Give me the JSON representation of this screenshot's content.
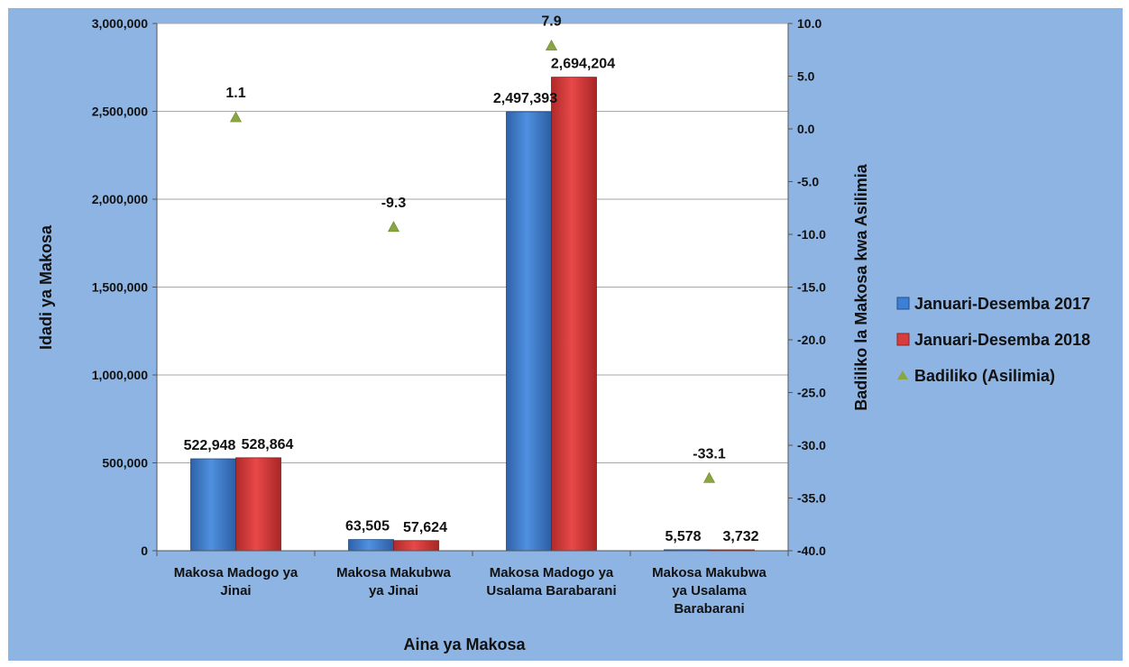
{
  "chart_data": {
    "type": "bar",
    "categories": [
      [
        "Makosa Madogo ya",
        "Jinai"
      ],
      [
        "Makosa Makubwa",
        "ya Jinai"
      ],
      [
        "Makosa Madogo ya",
        "Usalama Barabarani"
      ],
      [
        "Makosa Makubwa",
        "ya Usalama",
        "Barabarani"
      ]
    ],
    "series": [
      {
        "name": "Januari-Desemba 2017",
        "values": [
          522948,
          63505,
          2497393,
          5578
        ],
        "labels": [
          "522,948",
          "63,505",
          "2,497,393",
          "5,578"
        ],
        "color": "#3d7fd4"
      },
      {
        "name": "Januari-Desemba 2018",
        "values": [
          528864,
          57624,
          2694204,
          3732
        ],
        "labels": [
          "528,864",
          "57,624",
          "2,694,204",
          "3,732"
        ],
        "color": "#d93c3c"
      }
    ],
    "change_series": {
      "name": "Badiliko (Asilimia)",
      "values": [
        1.1,
        -9.3,
        7.9,
        -33.1
      ],
      "labels": [
        "1.1",
        "-9.3",
        "7.9",
        "-33.1"
      ],
      "color": "#8aa642"
    },
    "xlabel": "Aina ya Makosa",
    "ylabel": "Idadi ya Makosa",
    "y2label": "Badiliko la Makosa kwa Asilimia",
    "ylim": [
      0,
      3000000
    ],
    "y2lim": [
      -40,
      10
    ],
    "yticks": [
      "0",
      "500,000",
      "1,000,000",
      "1,500,000",
      "2,000,000",
      "2,500,000",
      "3,000,000"
    ],
    "y2ticks": [
      "-40.0",
      "-35.0",
      "-30.0",
      "-25.0",
      "-20.0",
      "-15.0",
      "-10.0",
      "-5.0",
      "0.0",
      "5.0",
      "10.0"
    ],
    "grid": true,
    "legend": "right",
    "background": "#8db4e2"
  }
}
